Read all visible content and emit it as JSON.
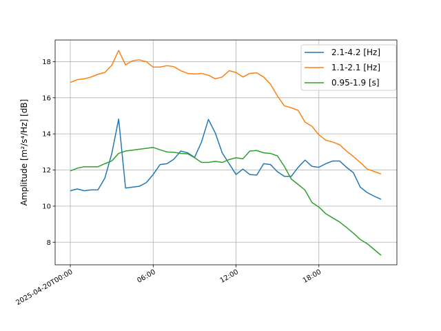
{
  "chart_data": {
    "type": "line",
    "xlabel": "",
    "ylabel": "Amplitude [m²/s⁴/Hz] [dB]",
    "x_tick_labels": [
      "2025-04-20T00:00",
      "06:00",
      "12:00",
      "18:00"
    ],
    "x_tick_hours": [
      0,
      6,
      12,
      18
    ],
    "y_ticks": [
      8,
      10,
      12,
      14,
      16,
      18
    ],
    "xlim_hours": [
      -1.1,
      23.65
    ],
    "ylim": [
      6.75,
      19.2
    ],
    "grid": true,
    "legend_position": "top-right",
    "x_hours": [
      0,
      0.5,
      1,
      1.5,
      2,
      2.5,
      3,
      3.5,
      4,
      4.5,
      5,
      5.5,
      6,
      6.5,
      7,
      7.5,
      8,
      8.5,
      9,
      9.5,
      10,
      10.5,
      11,
      11.5,
      12,
      12.5,
      13,
      13.5,
      14,
      14.5,
      15,
      15.5,
      16,
      16.5,
      17,
      17.5,
      18,
      18.5,
      19,
      19.5,
      20,
      20.5,
      21,
      21.5,
      22,
      22.5
    ],
    "series": [
      {
        "name": "2.1-4.2 [Hz]",
        "color": "#1f77b4",
        "values": [
          10.85,
          10.95,
          10.85,
          10.9,
          10.9,
          11.55,
          12.9,
          14.82,
          11.0,
          11.05,
          11.1,
          11.3,
          11.75,
          12.3,
          12.35,
          12.6,
          13.05,
          12.95,
          12.7,
          13.55,
          14.8,
          14.05,
          12.95,
          12.35,
          11.75,
          12.05,
          11.75,
          11.72,
          12.35,
          12.3,
          11.9,
          11.65,
          11.65,
          12.15,
          12.55,
          12.2,
          12.15,
          12.35,
          12.5,
          12.5,
          12.15,
          11.85,
          11.05,
          10.75,
          10.55,
          10.38
        ]
      },
      {
        "name": "1.1-2.1 [Hz]",
        "color": "#ff7f0e",
        "values": [
          16.85,
          17.0,
          17.05,
          17.15,
          17.3,
          17.4,
          17.8,
          18.62,
          17.82,
          18.05,
          18.1,
          18.0,
          17.7,
          17.7,
          17.78,
          17.72,
          17.5,
          17.35,
          17.32,
          17.35,
          17.25,
          17.05,
          17.15,
          17.5,
          17.4,
          17.15,
          17.35,
          17.38,
          17.15,
          16.75,
          16.1,
          15.55,
          15.45,
          15.3,
          14.65,
          14.42,
          13.95,
          13.65,
          13.55,
          13.4,
          13.05,
          12.75,
          12.42,
          12.05,
          11.92,
          11.78
        ]
      },
      {
        "name": "0.95-1.9 [s]",
        "color": "#2ca02c",
        "values": [
          11.95,
          12.1,
          12.18,
          12.18,
          12.18,
          12.35,
          12.5,
          12.92,
          13.05,
          13.1,
          13.15,
          13.2,
          13.25,
          13.12,
          13.0,
          12.98,
          12.92,
          12.9,
          12.68,
          12.42,
          12.42,
          12.48,
          12.42,
          12.58,
          12.68,
          12.62,
          13.05,
          13.08,
          12.95,
          12.92,
          12.78,
          12.2,
          11.5,
          11.2,
          10.88,
          10.2,
          9.95,
          9.58,
          9.35,
          9.12,
          8.82,
          8.5,
          8.15,
          7.92,
          7.6,
          7.28
        ]
      }
    ]
  }
}
